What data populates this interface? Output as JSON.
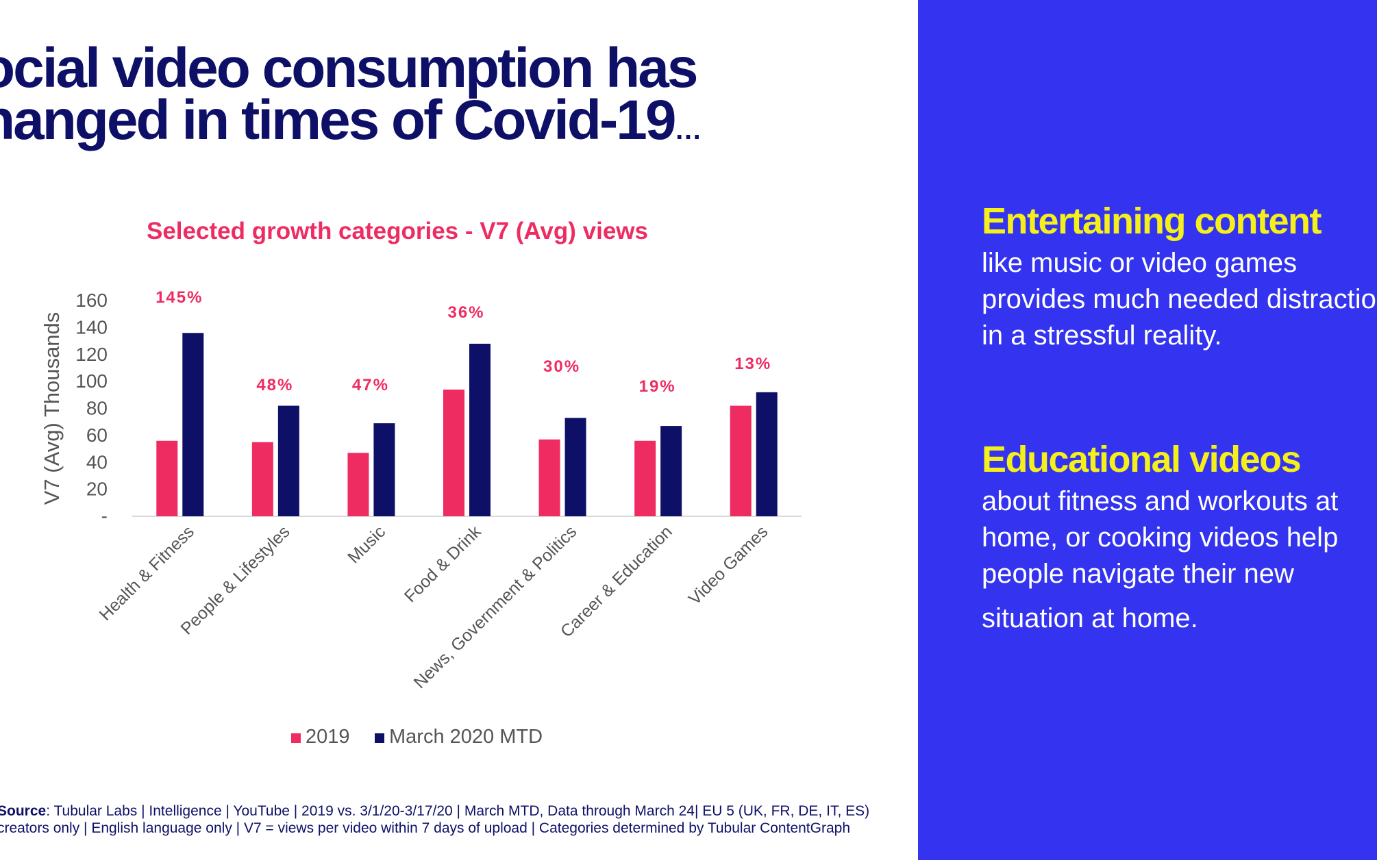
{
  "headline": {
    "line1": "ocial video consumption has",
    "line2": "hanged in times of Covid-19",
    "ellipsis": "…"
  },
  "chart_data": {
    "type": "bar",
    "title": "Selected growth categories - V7 (Avg) views",
    "ylabel": "V7 (Avg) Thousands",
    "xlabel": "",
    "ylim": [
      0,
      160
    ],
    "yticks": [
      "-",
      "20",
      "40",
      "60",
      "80",
      "100",
      "120",
      "140",
      "160"
    ],
    "categories": [
      "Health & Fitness",
      "People & Lifestyles",
      "Music",
      "Food & Drink",
      "News, Government & Politics",
      "Career & Education",
      "Video Games"
    ],
    "series": [
      {
        "name": "2019",
        "color": "#ee2c62",
        "values": [
          56,
          55,
          47,
          94,
          57,
          56,
          82
        ]
      },
      {
        "name": "March 2020 MTD",
        "color": "#0d1066",
        "values": [
          136,
          82,
          69,
          128,
          73,
          67,
          92
        ]
      }
    ],
    "growth_labels": [
      "145%",
      "48%",
      "47%",
      "36%",
      "30%",
      "19%",
      "13%"
    ],
    "legend_position": "bottom",
    "grid": false
  },
  "source": {
    "label": "Source",
    "line1": ": Tubular Labs | Intelligence | YouTube | 2019 vs. 3/1/20-3/17/20 | March MTD, Data through March 24| EU 5 (UK, FR, DE, IT, ES)",
    "line2": "creators only | English language only | V7 = views per video within 7 days of upload | Categories determined by Tubular ContentGraph"
  },
  "panel": {
    "background": "#3333f0",
    "block1": {
      "heading": "Entertaining content",
      "lines": [
        "like music or video games",
        "provides much needed distraction",
        "in a stressful reality."
      ]
    },
    "block2": {
      "heading": "Educational videos",
      "lines": [
        "about fitness and workouts at",
        "home, or cooking videos help",
        "people navigate their new",
        "situation at home."
      ]
    }
  }
}
